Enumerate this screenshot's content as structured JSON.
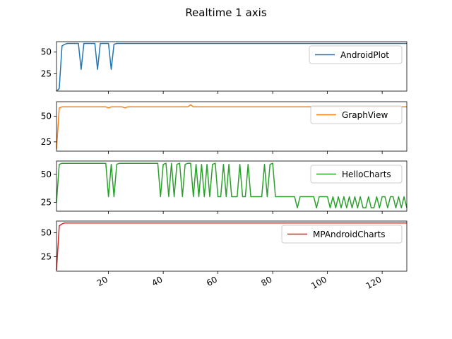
{
  "chart_data": {
    "type": "line",
    "title": "Realtime 1 axis",
    "xlim": [
      1,
      129
    ],
    "x_ticks": [
      20,
      40,
      60,
      80,
      100,
      120
    ],
    "subplots": [
      {
        "name": "AndroidPlot",
        "color": "#1f77b4",
        "ylim": [
          5,
          62
        ],
        "y_ticks": [
          25,
          50
        ],
        "legend_position": "upper-right",
        "points": [
          [
            1,
            5
          ],
          [
            2,
            8
          ],
          [
            3,
            57
          ],
          [
            4,
            59
          ],
          [
            5,
            60
          ],
          [
            9,
            60
          ],
          [
            10,
            30
          ],
          [
            11,
            60
          ],
          [
            15,
            60
          ],
          [
            16,
            30
          ],
          [
            17,
            60
          ],
          [
            20,
            60
          ],
          [
            21,
            30
          ],
          [
            22,
            59
          ],
          [
            23,
            60
          ],
          [
            129,
            60
          ]
        ]
      },
      {
        "name": "GraphView",
        "color": "#ff7f0e",
        "ylim": [
          16,
          64
        ],
        "y_ticks": [
          25,
          50
        ],
        "legend_position": "upper-right",
        "points": [
          [
            1,
            18
          ],
          [
            2,
            58
          ],
          [
            3,
            59
          ],
          [
            19,
            59
          ],
          [
            20,
            58
          ],
          [
            21,
            59
          ],
          [
            25,
            59
          ],
          [
            26,
            58
          ],
          [
            27,
            59
          ],
          [
            49,
            59
          ],
          [
            50,
            61
          ],
          [
            51,
            59
          ],
          [
            129,
            59
          ]
        ]
      },
      {
        "name": "HelloCharts",
        "color": "#2ca02c",
        "ylim": [
          17,
          62
        ],
        "y_ticks": [
          25,
          50
        ],
        "legend_position": "upper-right",
        "points": [
          [
            1,
            25
          ],
          [
            2,
            59
          ],
          [
            3,
            60
          ],
          [
            19,
            60
          ],
          [
            20,
            30
          ],
          [
            21,
            59
          ],
          [
            22,
            30
          ],
          [
            23,
            59
          ],
          [
            24,
            60
          ],
          [
            38,
            60
          ],
          [
            39,
            30
          ],
          [
            40,
            59
          ],
          [
            41,
            60
          ],
          [
            42,
            30
          ],
          [
            43,
            60
          ],
          [
            44,
            30
          ],
          [
            45,
            59
          ],
          [
            46,
            60
          ],
          [
            47,
            30
          ],
          [
            48,
            59
          ],
          [
            49,
            60
          ],
          [
            50,
            60
          ],
          [
            51,
            30
          ],
          [
            52,
            59
          ],
          [
            53,
            30
          ],
          [
            54,
            59
          ],
          [
            55,
            30
          ],
          [
            56,
            59
          ],
          [
            57,
            30
          ],
          [
            58,
            59
          ],
          [
            59,
            60
          ],
          [
            60,
            30
          ],
          [
            61,
            30
          ],
          [
            62,
            59
          ],
          [
            63,
            30
          ],
          [
            64,
            59
          ],
          [
            65,
            30
          ],
          [
            66,
            30
          ],
          [
            67,
            30
          ],
          [
            68,
            59
          ],
          [
            69,
            30
          ],
          [
            70,
            30
          ],
          [
            71,
            59
          ],
          [
            72,
            30
          ],
          [
            73,
            30
          ],
          [
            74,
            30
          ],
          [
            75,
            30
          ],
          [
            76,
            30
          ],
          [
            77,
            59
          ],
          [
            78,
            30
          ],
          [
            79,
            59
          ],
          [
            80,
            60
          ],
          [
            81,
            30
          ],
          [
            88,
            30
          ],
          [
            89,
            20
          ],
          [
            90,
            30
          ],
          [
            95,
            30
          ],
          [
            96,
            20
          ],
          [
            97,
            30
          ],
          [
            100,
            30
          ],
          [
            101,
            20
          ],
          [
            102,
            30
          ],
          [
            103,
            20
          ],
          [
            104,
            30
          ],
          [
            105,
            20
          ],
          [
            106,
            30
          ],
          [
            107,
            20
          ],
          [
            108,
            30
          ],
          [
            109,
            20
          ],
          [
            110,
            30
          ],
          [
            111,
            20
          ],
          [
            112,
            30
          ],
          [
            113,
            20
          ],
          [
            114,
            20
          ],
          [
            115,
            30
          ],
          [
            116,
            20
          ],
          [
            117,
            20
          ],
          [
            118,
            30
          ],
          [
            119,
            20
          ],
          [
            120,
            30
          ],
          [
            121,
            30
          ],
          [
            122,
            20
          ],
          [
            123,
            30
          ],
          [
            124,
            30
          ],
          [
            125,
            20
          ],
          [
            126,
            30
          ],
          [
            127,
            20
          ],
          [
            128,
            30
          ],
          [
            129,
            20
          ]
        ]
      },
      {
        "name": "MPAndroidCharts",
        "color": "#d62728",
        "ylim": [
          10,
          62
        ],
        "y_ticks": [
          25,
          50
        ],
        "legend_position": "upper-right",
        "points": [
          [
            1,
            11
          ],
          [
            2,
            57
          ],
          [
            3,
            59
          ],
          [
            4,
            60
          ],
          [
            129,
            60
          ]
        ]
      }
    ]
  }
}
